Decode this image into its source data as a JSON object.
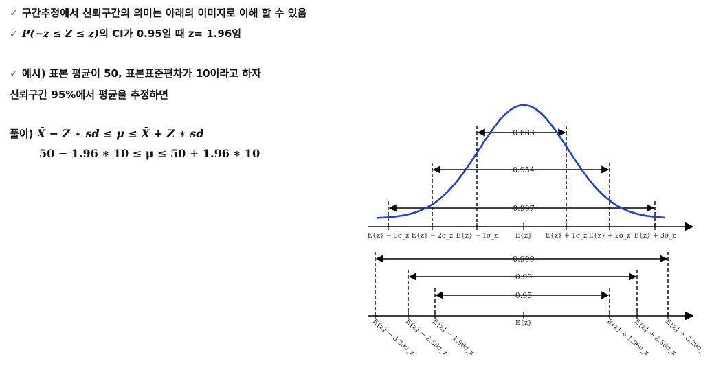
{
  "slide": {
    "bullet1": "구간추정에서 신뢰구간의 의미는 아래의 이미지로 이해 할 수 있음",
    "bullet2_math": "P(−z ≤ Z ≤ z)",
    "bullet2_rest": "의 CI가 0.95일 때  z= 1.96임",
    "bullet3": "예시)  표본 평균이 50, 표본표준편차가 10이라고 하자",
    "line4": "신뢰구간 95%에서 평균을 추정하면",
    "solution_label": "풀이)",
    "solution_formula": "X̄ − Z ∗ sd ≤ μ ≤ X̄ + Z ∗ sd",
    "solution_numeric": "50 − 1.96 ∗ 10 ≤ μ ≤ 50 + 1.96 ∗ 10",
    "check_mark": "✓"
  },
  "figure": {
    "curve_color": "#1f3fd6",
    "upper_intervals": [
      "0.683",
      "0.954",
      "0.997"
    ],
    "upper_ticks": [
      "E{z} − 3σ_z",
      "E{z} − 2σ_z",
      "E{z} − 1σ_z",
      "E{z}",
      "E{z} + 1σ_z",
      "E{z} + 2σ_z",
      "E{z} + 3σ_z"
    ],
    "lower_intervals": [
      "0.999",
      "0.99",
      "0.95"
    ],
    "lower_ticks": [
      "E{z} − 3.29σ_z",
      "E{z} − 2.58σ_z",
      "E{z} − 1.96σ_z",
      "E{z}",
      "E{z} + 1.96σ_z",
      "E{z} + 2.58σ_z",
      "E{z} + 3.29σ_z"
    ]
  }
}
